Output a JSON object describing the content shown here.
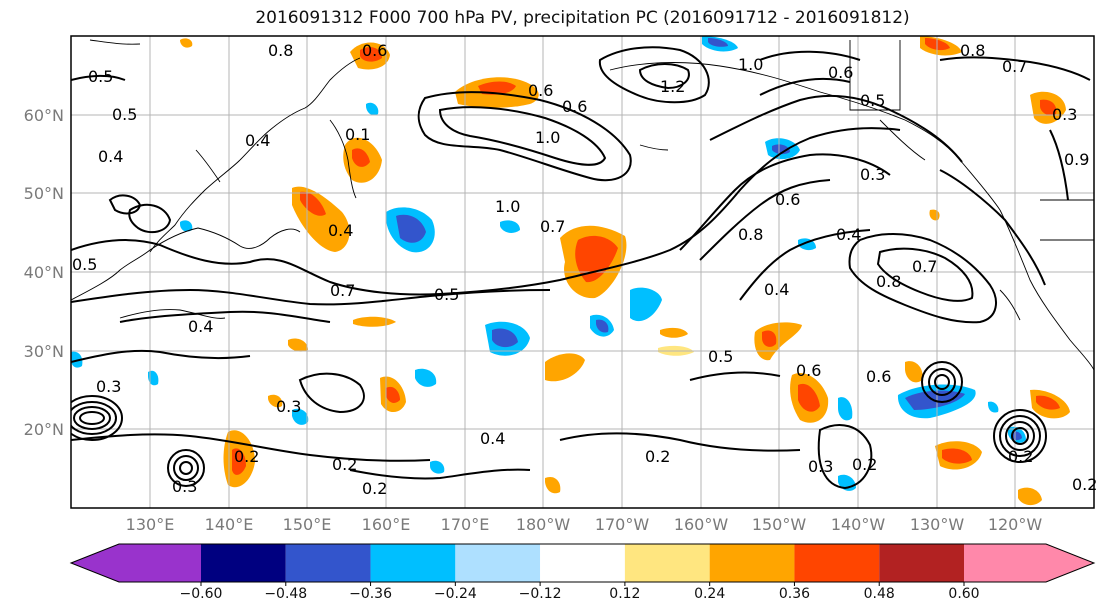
{
  "title": "2016091312 F000 700 hPa PV, precipitation PC (2016091712 - 2016091812)",
  "latitude_labels": [
    "60°N",
    "50°N",
    "40°N",
    "30°N",
    "20°N"
  ],
  "longitude_labels": [
    "130°E",
    "140°E",
    "150°E",
    "160°E",
    "170°E",
    "180°W",
    "170°W",
    "160°W",
    "150°W",
    "140°W",
    "130°W",
    "120°W"
  ],
  "colorbar": {
    "tick_labels": [
      "−0.60",
      "−0.48",
      "−0.36",
      "−0.24",
      "−0.12",
      "0.12",
      "0.24",
      "0.36",
      "0.48",
      "0.60"
    ],
    "colors": [
      "#9933cc",
      "#000080",
      "#3355cc",
      "#00bfff",
      "#aee0ff",
      "#ffffff",
      "#ffe680",
      "#ffa500",
      "#ff4500",
      "#b22222",
      "#ff88aa"
    ],
    "extend": "both"
  },
  "contour_labels": [
    "0.8",
    "0.5",
    "0.5",
    "0.4",
    "0.6",
    "1.0",
    "0.6",
    "1.2",
    "1.0",
    "0.6",
    "0.5",
    "0.8",
    "0.7",
    "0.4",
    "0.1",
    "0.6",
    "0.7",
    "1.0",
    "0.8",
    "0.6",
    "0.4",
    "0.4",
    "0.7",
    "0.5",
    "0.4",
    "0.8",
    "0.7",
    "0.4",
    "0.5",
    "0.6",
    "0.6",
    "0.3",
    "0.2",
    "0.2",
    "0.2",
    "0.4",
    "0.2",
    "0.3",
    "0.2",
    "0.3",
    "0.9",
    "0.3",
    "0.2",
    "0.5",
    "0.3",
    "0.3",
    "0.2"
  ],
  "gridlines": true
}
